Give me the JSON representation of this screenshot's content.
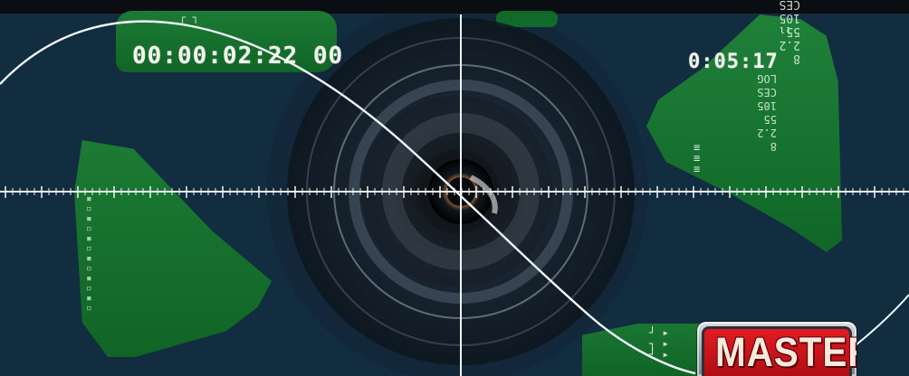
{
  "overlay": {
    "timecode_left": "00:00:02:22 00",
    "timecode_right": "0:05:17",
    "top_small": "┌ ┐",
    "right_top_small": "ιι",
    "right_column_1": "8\n2.2\n55\n105\nCES\nLOG",
    "right_column_2": "8\n2.2\n55\n105\nCES\nLOG",
    "left_small": "▪\n▫\n▪\n▫\n▪\n▫\n▪\n▫\n▪\n▫\n▪\n▫",
    "right_mid_glyphs": "≡\n≡\n≡",
    "bottom_left_glyphs": "┘ ▸\n┐ ▸\n┘ ▸"
  },
  "badge": {
    "label": "MASTER"
  },
  "colors": {
    "panel_green": "#167d34",
    "badge_red": "#d81f26",
    "badge_silver": "#b3bac1",
    "crosshair": "#eef4f8"
  },
  "icons": {
    "lens": "camera-lens-icon",
    "crosshair": "crosshair-icon"
  }
}
